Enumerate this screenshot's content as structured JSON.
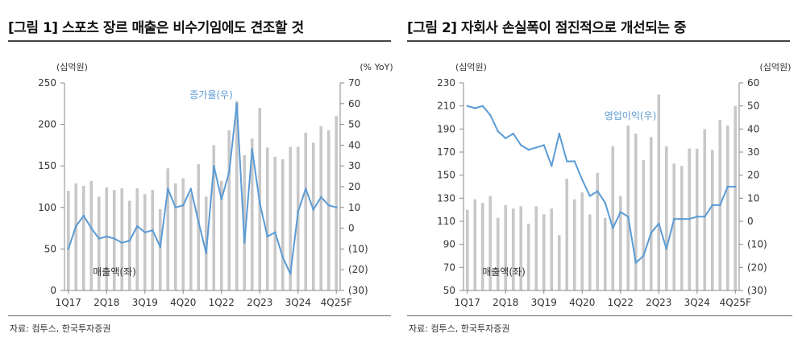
{
  "source_text": "자료: 컴투스, 한국투자증권",
  "chart_data": [
    {
      "type": "bar",
      "title": "[그림 1] 스포츠 장르 매출은 비수기임에도 견조할 것",
      "left_unit": "(십억원)",
      "right_unit": "(% YoY)",
      "left_axis": {
        "min": 0,
        "max": 250,
        "ticks": [
          0,
          50,
          100,
          150,
          200,
          250
        ]
      },
      "right_axis": {
        "min": -30,
        "max": 70,
        "ticks": [
          70,
          60,
          50,
          40,
          30,
          20,
          10,
          0,
          -10,
          -20,
          -30
        ],
        "tick_labels": [
          "70",
          "60",
          "50",
          "40",
          "30",
          "20",
          "10",
          "0",
          "(10)",
          "(20)",
          "(30)"
        ]
      },
      "x_tick_labels": [
        "1Q17",
        "2Q18",
        "3Q19",
        "4Q20",
        "1Q22",
        "2Q23",
        "3Q24",
        "4Q25F"
      ],
      "x_tick_indices": [
        0,
        5,
        10,
        15,
        20,
        25,
        30,
        35
      ],
      "series": [
        {
          "name": "매출액(좌)",
          "kind": "bar",
          "axis": "left",
          "color": "#c8c8c8",
          "values": [
            120,
            129,
            126,
            132,
            113,
            124,
            121,
            123,
            108,
            123,
            116,
            121,
            98,
            147,
            129,
            135,
            116,
            152,
            113,
            175,
            132,
            193,
            228,
            163,
            183,
            220,
            172,
            161,
            158,
            173,
            173,
            190,
            178,
            198,
            193,
            210
          ]
        },
        {
          "name": "증가율(우)",
          "kind": "line",
          "axis": "right",
          "color": "#5b9bd5",
          "values": [
            -10,
            1,
            6,
            0,
            -5,
            -4,
            -5,
            -7,
            -6,
            1,
            -2,
            -1,
            -9,
            19,
            10,
            11,
            19,
            3,
            -12,
            30,
            14,
            27,
            60,
            -7,
            38,
            12,
            -4,
            -2,
            -14,
            -22,
            8,
            19,
            9,
            15,
            11,
            10
          ]
        }
      ],
      "annotations": {
        "bar_label": "매출액(좌)",
        "line_label": "증가율(우)"
      }
    },
    {
      "type": "bar",
      "title": "[그림 2] 자회사 손실폭이 점진적으로 개선되는 중",
      "left_unit": "(십억원)",
      "right_unit": "(십억원)",
      "left_axis": {
        "min": 50,
        "max": 230,
        "ticks": [
          50,
          70,
          90,
          110,
          130,
          150,
          170,
          190,
          210,
          230
        ]
      },
      "right_axis": {
        "min": -30,
        "max": 60,
        "ticks": [
          60,
          50,
          40,
          30,
          20,
          10,
          0,
          -10,
          -20,
          -30
        ],
        "tick_labels": [
          "60",
          "50",
          "40",
          "30",
          "20",
          "10",
          "0",
          "(10)",
          "(20)",
          "(30)"
        ]
      },
      "x_tick_labels": [
        "1Q17",
        "2Q18",
        "3Q19",
        "4Q20",
        "1Q22",
        "2Q23",
        "3Q24",
        "4Q25F"
      ],
      "x_tick_indices": [
        0,
        5,
        10,
        15,
        20,
        25,
        30,
        35
      ],
      "series": [
        {
          "name": "매출액(좌)",
          "kind": "bar",
          "axis": "left",
          "color": "#c8c8c8",
          "values": [
            120,
            129,
            126,
            132,
            113,
            124,
            121,
            123,
            108,
            123,
            116,
            121,
            98,
            147,
            129,
            135,
            116,
            152,
            113,
            175,
            132,
            193,
            186,
            163,
            183,
            220,
            175,
            160,
            158,
            173,
            173,
            190,
            172,
            198,
            193,
            210
          ]
        },
        {
          "name": "영업이익(우)",
          "kind": "line",
          "axis": "right",
          "color": "#5b9bd5",
          "values": [
            50,
            49,
            50,
            46,
            39,
            36,
            38,
            33,
            31,
            32,
            33,
            24,
            38,
            26,
            26,
            18,
            11,
            13,
            8,
            -3,
            4,
            2,
            -18,
            -15,
            -5,
            -1,
            -12,
            1,
            1,
            1,
            2,
            2,
            7,
            7,
            15,
            15
          ]
        }
      ],
      "annotations": {
        "bar_label": "매출액(좌)",
        "line_label": "영업이익(우)"
      }
    }
  ]
}
